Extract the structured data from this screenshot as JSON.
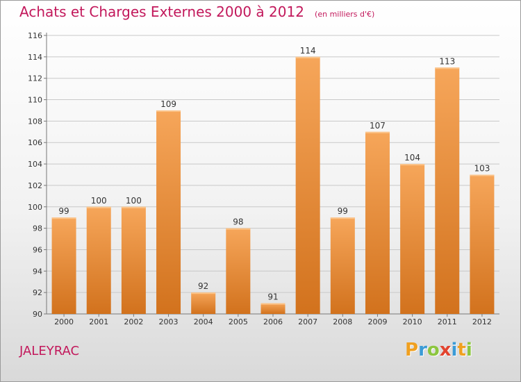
{
  "header": {
    "title": "Achats et Charges Externes 2000 à 2012",
    "subtitle": "(en milliers d'€)"
  },
  "footer": {
    "commune": "JALEYRAC",
    "logo_text": "Proxiti",
    "logo_letters": [
      "P",
      "r",
      "o",
      "x",
      "i",
      "t",
      "i"
    ],
    "logo_colors": [
      "#f0a020",
      "#3b9bd6",
      "#8cc63f",
      "#e2432e",
      "#3b9bd6",
      "#f0a020",
      "#8cc63f"
    ]
  },
  "colors": {
    "accent": "#c2185b",
    "bar_top": "#f6a65a",
    "bar_bottom": "#d2721d",
    "grid": "#c8c8c8",
    "text": "#333333"
  },
  "chart_data": {
    "type": "bar",
    "title": "Achats et Charges Externes 2000 à 2012",
    "subtitle": "(en milliers d'€)",
    "categories": [
      "2000",
      "2001",
      "2002",
      "2003",
      "2004",
      "2005",
      "2006",
      "2007",
      "2008",
      "2009",
      "2010",
      "2011",
      "2012"
    ],
    "values": [
      99,
      100,
      100,
      109,
      92,
      98,
      91,
      114,
      99,
      107,
      104,
      113,
      103
    ],
    "data_labels": [
      "99",
      "100",
      "100",
      "109",
      "92",
      "98",
      "91",
      "114",
      "99",
      "107",
      "104",
      "113",
      "103"
    ],
    "ylim": [
      90,
      116
    ],
    "yticks": [
      90,
      92,
      94,
      96,
      98,
      100,
      102,
      104,
      106,
      108,
      110,
      112,
      114,
      116
    ],
    "grid": true,
    "xlabel": "",
    "ylabel": ""
  }
}
